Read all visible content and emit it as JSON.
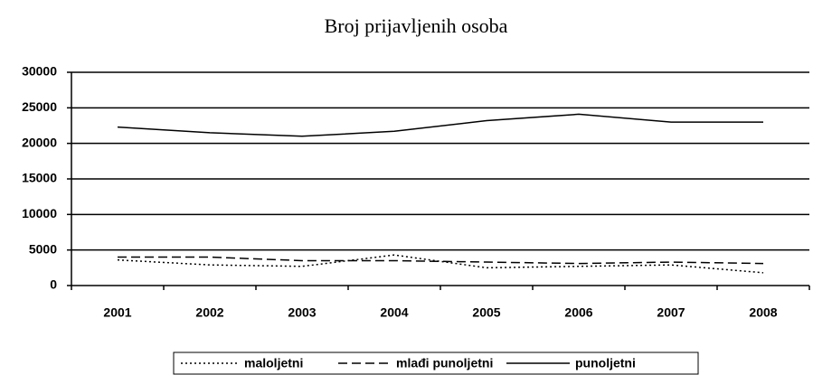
{
  "chart_data": {
    "type": "line",
    "title": "Broj prijavljenih osoba",
    "categories": [
      "2001",
      "2002",
      "2003",
      "2004",
      "2005",
      "2006",
      "2007",
      "2008"
    ],
    "series": [
      {
        "name": "maloljetni",
        "color": "#000000",
        "dash": "dotted",
        "values": [
          3600,
          2900,
          2700,
          4300,
          2500,
          2700,
          2900,
          1800
        ]
      },
      {
        "name": "mlađi punoljetni",
        "color": "#000000",
        "dash": "dashed",
        "values": [
          4000,
          4000,
          3500,
          3500,
          3300,
          3100,
          3300,
          3100
        ]
      },
      {
        "name": "punoljetni",
        "color": "#000000",
        "dash": "solid",
        "values": [
          22300,
          21500,
          21000,
          21700,
          23200,
          24100,
          23000,
          23000
        ]
      }
    ],
    "ylim": [
      0,
      30000
    ],
    "yticks": [
      0,
      5000,
      10000,
      15000,
      20000,
      25000,
      30000
    ],
    "grid": true,
    "legend": "bottom"
  }
}
